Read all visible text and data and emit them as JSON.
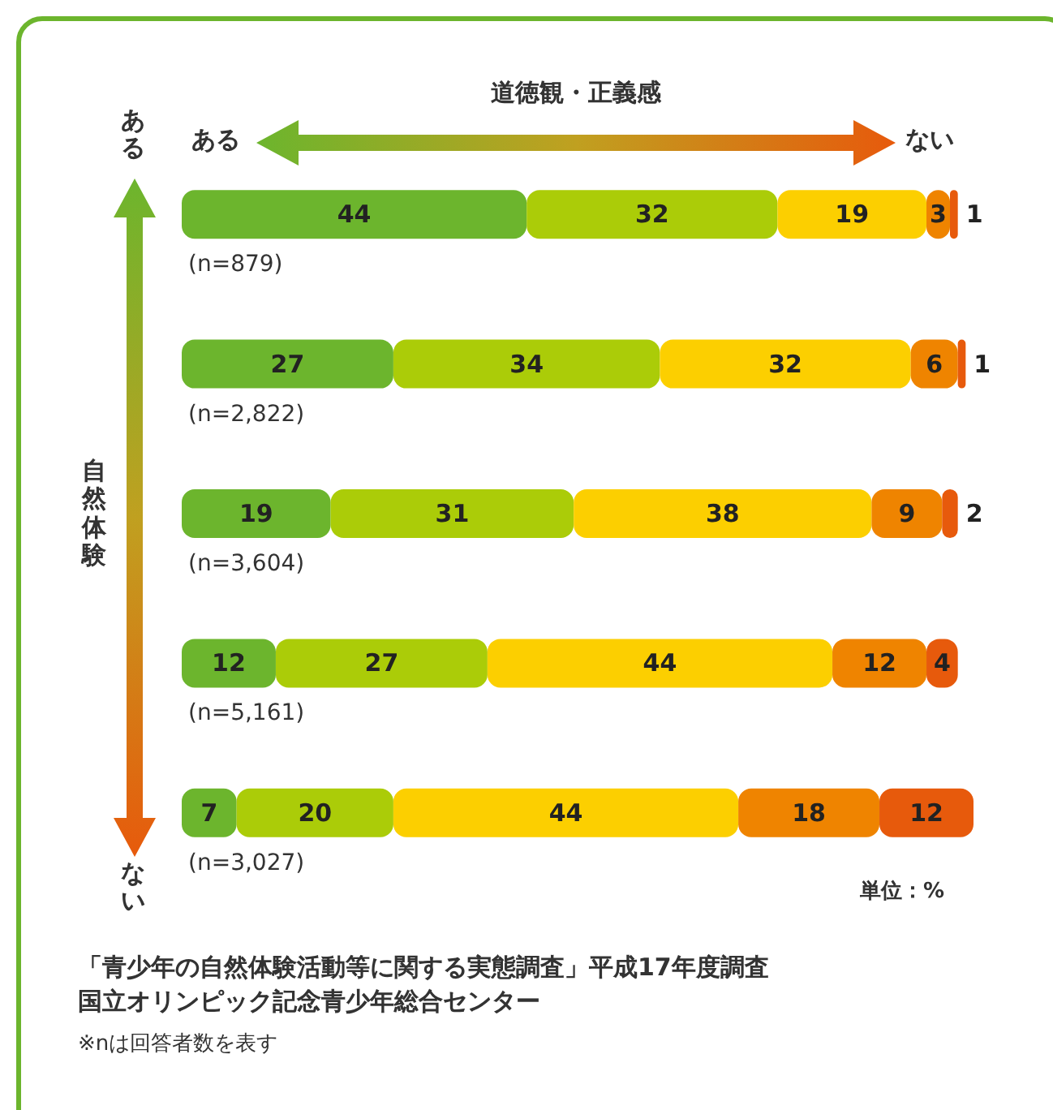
{
  "chart_data": {
    "type": "bar",
    "orientation": "horizontal",
    "stacked": true,
    "data_labels": true,
    "tick_labels": "y",
    "xlabel": "道徳観・正義感",
    "ylabel": "自然体験",
    "categories": [
      "(n=879)",
      "(n=2,822)",
      "(n=3,604)",
      "(n=5,161)",
      "(n=3,027)"
    ],
    "series": [
      {
        "color": "#6cb52d",
        "values": [
          44,
          27,
          19,
          12,
          7
        ]
      },
      {
        "color": "#abcc08",
        "values": [
          32,
          34,
          31,
          27,
          20
        ]
      },
      {
        "color": "#fccf00",
        "values": [
          19,
          32,
          38,
          44,
          44
        ]
      },
      {
        "color": "#ef8400",
        "values": [
          3,
          6,
          9,
          12,
          18
        ]
      },
      {
        "color": "#e75a0c",
        "values": [
          1,
          1,
          2,
          4,
          12
        ]
      }
    ],
    "annotations": [
      "ある",
      "ない",
      "ある",
      "ない",
      "単位：%",
      "「青少年の自然体験活動等に関する実態調査」平成17年度調査",
      "国立オリンピック記念青少年総合センター",
      "※nは回答者数を表す"
    ]
  }
}
